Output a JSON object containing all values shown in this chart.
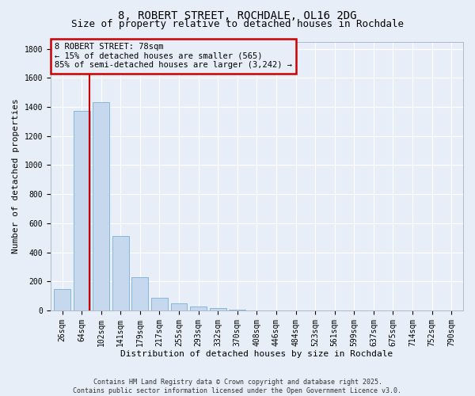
{
  "title": "8, ROBERT STREET, ROCHDALE, OL16 2DG",
  "subtitle": "Size of property relative to detached houses in Rochdale",
  "xlabel": "Distribution of detached houses by size in Rochdale",
  "ylabel": "Number of detached properties",
  "categories": [
    "26sqm",
    "64sqm",
    "102sqm",
    "141sqm",
    "179sqm",
    "217sqm",
    "255sqm",
    "293sqm",
    "332sqm",
    "370sqm",
    "408sqm",
    "446sqm",
    "484sqm",
    "523sqm",
    "561sqm",
    "599sqm",
    "637sqm",
    "675sqm",
    "714sqm",
    "752sqm",
    "790sqm"
  ],
  "values": [
    148,
    1375,
    1435,
    510,
    228,
    88,
    48,
    28,
    18,
    5,
    0,
    0,
    0,
    0,
    0,
    0,
    0,
    0,
    0,
    0,
    0
  ],
  "bar_color": "#c5d8ee",
  "bar_edge_color": "#7aafd4",
  "vline_x": 1.42,
  "vline_color": "#cc0000",
  "annotation_text": "8 ROBERT STREET: 78sqm\n← 15% of detached houses are smaller (565)\n85% of semi-detached houses are larger (3,242) →",
  "annotation_box_color": "#cc0000",
  "ylim": [
    0,
    1850
  ],
  "yticks": [
    0,
    200,
    400,
    600,
    800,
    1000,
    1200,
    1400,
    1600,
    1800
  ],
  "background_color": "#e8eef8",
  "grid_color": "#ffffff",
  "footer": "Contains HM Land Registry data © Crown copyright and database right 2025.\nContains public sector information licensed under the Open Government Licence v3.0.",
  "title_fontsize": 10,
  "subtitle_fontsize": 9,
  "label_fontsize": 8,
  "tick_fontsize": 7,
  "footer_fontsize": 6,
  "annot_fontsize": 7.5
}
